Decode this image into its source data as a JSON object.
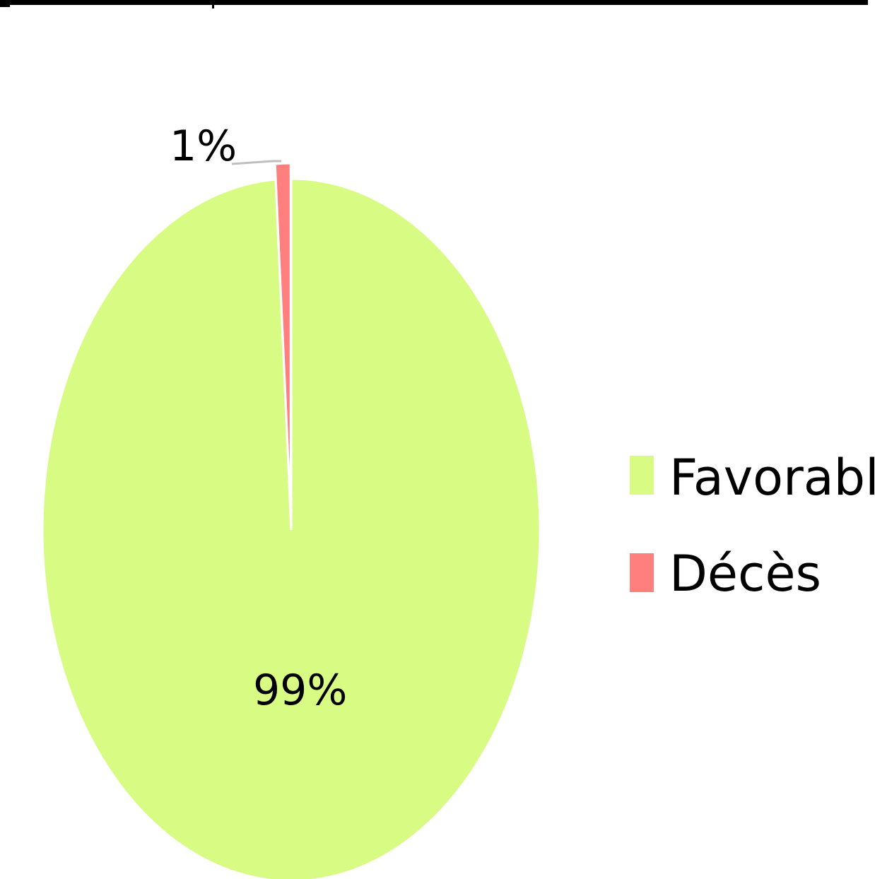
{
  "chart_data": {
    "type": "pie",
    "categories": [
      "Favorable",
      "Décès"
    ],
    "values": [
      99,
      1
    ],
    "data_labels": [
      "99%",
      "1%"
    ],
    "colors": [
      "#D8FB84",
      "#FF7F7F"
    ],
    "legend": {
      "entries": [
        "Favorable",
        "Décès"
      ],
      "placement": "right"
    }
  }
}
